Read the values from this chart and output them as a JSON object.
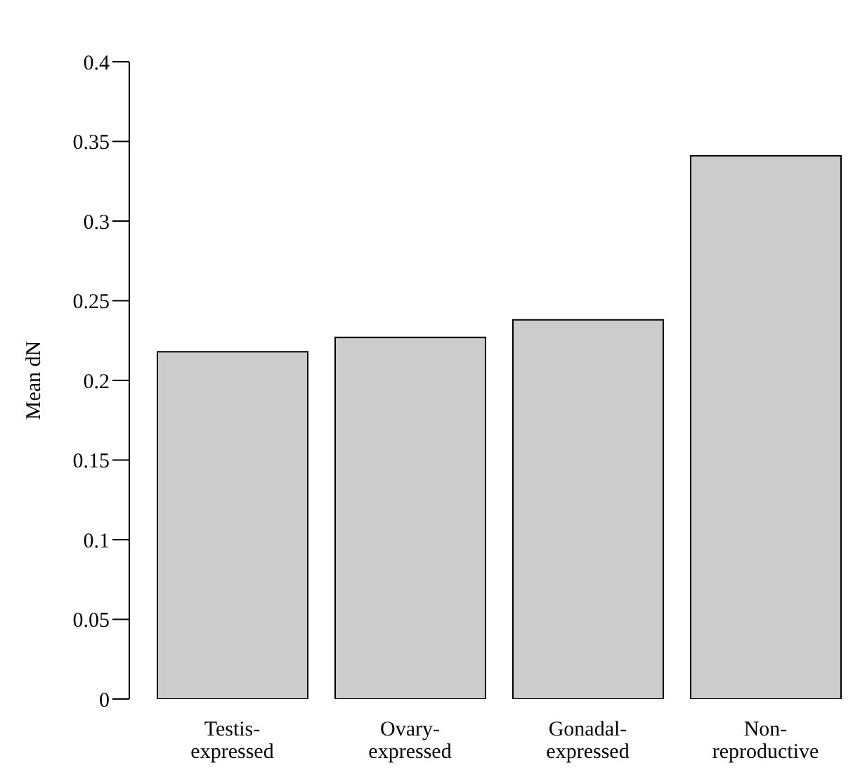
{
  "chart_data": {
    "type": "bar",
    "ylabel": "Mean dN",
    "categories": [
      "Testis-expressed",
      "Ovary-expressed",
      "Gonadal-expressed",
      "Non-reproductive"
    ],
    "values": [
      0.218,
      0.227,
      0.238,
      0.341
    ],
    "color": "#cccccc",
    "ylim": [
      0,
      0.4
    ],
    "yticks": [
      0,
      0.05,
      0.1,
      0.15,
      0.2,
      0.25,
      0.3,
      0.35,
      0.4
    ],
    "grid": false
  }
}
